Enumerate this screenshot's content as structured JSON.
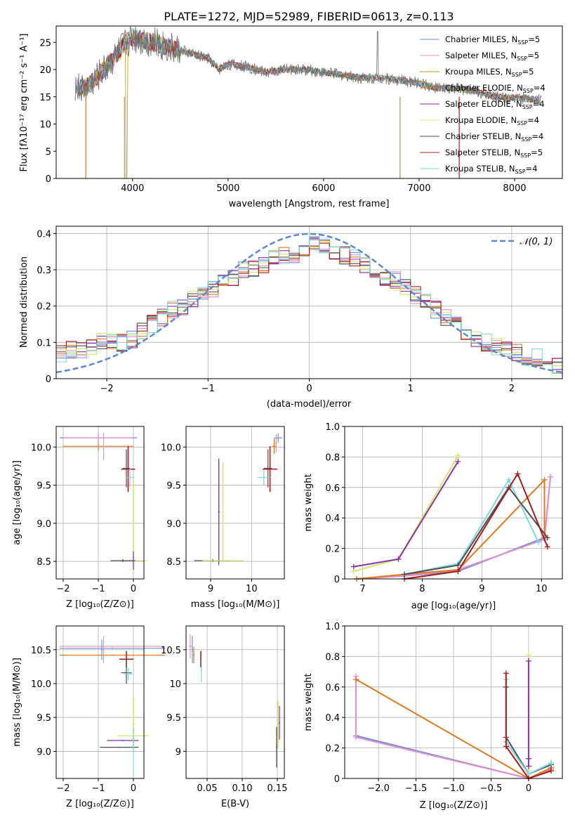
{
  "figure_title": "PLATE=1272, MJD=52989, FIBERID=0613, z=0.113",
  "colors": [
    "#6f8fd6",
    "#e58fce",
    "#e07a1f",
    "#8e2fb0",
    "#d4e76a",
    "#4e4e4e",
    "#a81a1a",
    "#7fd7e0"
  ],
  "chart_data": [
    {
      "id": "spectrum",
      "type": "line",
      "xlabel": "wavelength [Angstrom, rest frame]",
      "ylabel": "Flux [fλ10⁻¹⁷ erg cm⁻² s⁻¹ A⁻¹]",
      "xlim": [
        3200,
        8500
      ],
      "ylim": [
        0,
        28
      ],
      "xticks": [
        4000,
        5000,
        6000,
        7000,
        8000
      ],
      "yticks": [
        0,
        5,
        10,
        15,
        20,
        25
      ],
      "grid": false,
      "legend_position": "top-right",
      "legend": [
        {
          "name": "Chabrier MILES, N",
          "sub": "SSP",
          "suffix": "=5",
          "color": "#6f8fd6"
        },
        {
          "name": "Salpeter MILES, N",
          "sub": "SSP",
          "suffix": "=5",
          "color": "#e58fce"
        },
        {
          "name": "Kroupa MILES, N",
          "sub": "SSP",
          "suffix": "=5",
          "color": "#bf9a1a"
        },
        {
          "name": "Chabrier ELODIE, N",
          "sub": "SSP",
          "suffix": "=4",
          "color": "#e07a1f"
        },
        {
          "name": "Salpeter ELODIE, N",
          "sub": "SSP",
          "suffix": "=4",
          "color": "#8e2fb0"
        },
        {
          "name": "Kroupa ELODIE, N",
          "sub": "SSP",
          "suffix": "=4",
          "color": "#d4e76a"
        },
        {
          "name": "Chabrier STELIB, N",
          "sub": "SSP",
          "suffix": "=4",
          "color": "#4e4e4e"
        },
        {
          "name": "Salpeter STELIB, N",
          "sub": "SSP",
          "suffix": "=5",
          "color": "#a81a1a"
        },
        {
          "name": "Kroupa STELIB, N",
          "sub": "SSP",
          "suffix": "=4",
          "color": "#7fd7e0"
        }
      ],
      "data_wavelength": [
        3400,
        3500,
        3700,
        3800,
        3900,
        4000,
        4200,
        4400,
        4600,
        4800,
        4900,
        5000,
        5200,
        5400,
        5600,
        5800,
        6000,
        6200,
        6400,
        6600,
        6800,
        7000,
        7200,
        7400,
        7600,
        7800,
        8000,
        8250
      ],
      "data_flux": [
        17,
        16.5,
        20,
        22,
        24.5,
        26,
        25,
        24,
        23,
        22,
        20,
        21,
        20.5,
        19.5,
        20,
        20,
        19.5,
        19,
        18.5,
        18.5,
        18,
        17.5,
        16.5,
        16.5,
        16,
        15,
        14.8,
        14.5
      ],
      "model_start": 3420
    },
    {
      "id": "residuals",
      "type": "histogram",
      "xlabel": "(data-model)/error",
      "ylabel": "Normed distribution",
      "xlim": [
        -2.5,
        2.5
      ],
      "ylim": [
        0,
        0.42
      ],
      "xticks": [
        -2,
        -1,
        0,
        1,
        2
      ],
      "yticks": [
        0.0,
        0.1,
        0.2,
        0.3,
        0.4
      ],
      "grid": true,
      "legend_position": "top-right",
      "legend": [
        {
          "name": "𝒩(0, 1)",
          "style": "dashed",
          "color": "#5b87d6"
        }
      ],
      "bin_width": 0.1,
      "bin_start": -2.5,
      "model_hist": [
        0.07,
        0.08,
        0.08,
        0.09,
        0.1,
        0.1,
        0.1,
        0.11,
        0.13,
        0.15,
        0.17,
        0.19,
        0.2,
        0.22,
        0.23,
        0.25,
        0.27,
        0.28,
        0.3,
        0.3,
        0.31,
        0.33,
        0.34,
        0.34,
        0.36,
        0.37,
        0.36,
        0.35,
        0.34,
        0.33,
        0.31,
        0.3,
        0.28,
        0.27,
        0.25,
        0.23,
        0.21,
        0.19,
        0.17,
        0.15,
        0.13,
        0.11,
        0.1,
        0.09,
        0.08,
        0.07,
        0.06,
        0.06,
        0.05,
        0.04
      ]
    },
    {
      "id": "age-vs-Z",
      "type": "errorbar",
      "xlabel": "Z [log₁₀(Z/Z⊙)]",
      "ylabel": "age [log₁₀(age/yr)]",
      "xlim": [
        -2.2,
        0.3
      ],
      "ylim": [
        8.27,
        10.27
      ],
      "xticks": [
        -2,
        -1,
        0
      ],
      "yticks": [
        8.5,
        9.0,
        9.5,
        10.0
      ],
      "grid": true
    },
    {
      "id": "age-vs-mass",
      "type": "errorbar",
      "xlabel": "mass [log₁₀(M/M⊙)]",
      "ylabel": "",
      "xlim": [
        8.4,
        10.8
      ],
      "ylim": [
        8.27,
        10.27
      ],
      "xticks": [
        9,
        10
      ],
      "yticks": [
        8.5,
        9.0,
        9.5,
        10.0
      ],
      "grid": true
    },
    {
      "id": "weight-vs-age",
      "type": "line",
      "xlabel": "age [log₁₀(age/yr)]",
      "ylabel": "mass weight",
      "xlim": [
        6.7,
        10.35
      ],
      "ylim": [
        0,
        1.0
      ],
      "xticks": [
        7,
        8,
        9,
        10
      ],
      "yticks": [
        0.0,
        0.2,
        0.4,
        0.6,
        0.8,
        1.0
      ],
      "grid": true
    },
    {
      "id": "mass-vs-Z",
      "type": "errorbar",
      "xlabel": "Z [log₁₀(Z/Z⊙)]",
      "ylabel": "mass [log₁₀(M/M⊙)]",
      "xlim": [
        -2.2,
        0.3
      ],
      "ylim": [
        8.6,
        10.85
      ],
      "xticks": [
        -2,
        -1,
        0
      ],
      "yticks": [
        9.0,
        9.5,
        10.0,
        10.5
      ],
      "grid": true
    },
    {
      "id": "mass-vs-ebv",
      "type": "errorbar",
      "xlabel": "E(B-V)",
      "ylabel": "",
      "xlim": [
        0.02,
        0.16
      ],
      "ylim": [
        8.6,
        10.85
      ],
      "xticks": [
        0.05,
        0.1,
        0.15
      ],
      "yticks": [
        9.0,
        9.5,
        10.0,
        10.5
      ],
      "grid": true
    },
    {
      "id": "weight-vs-Z",
      "type": "line",
      "xlabel": "Z [log₁₀(Z/Z⊙)]",
      "ylabel": "mass weight",
      "xlim": [
        -2.45,
        0.45
      ],
      "ylim": [
        0,
        1.0
      ],
      "xticks": [
        -2.0,
        -1.5,
        -1.0,
        -0.5,
        0.0
      ],
      "yticks": [
        0.0,
        0.2,
        0.4,
        0.6,
        0.8,
        1.0
      ],
      "grid": true
    }
  ]
}
